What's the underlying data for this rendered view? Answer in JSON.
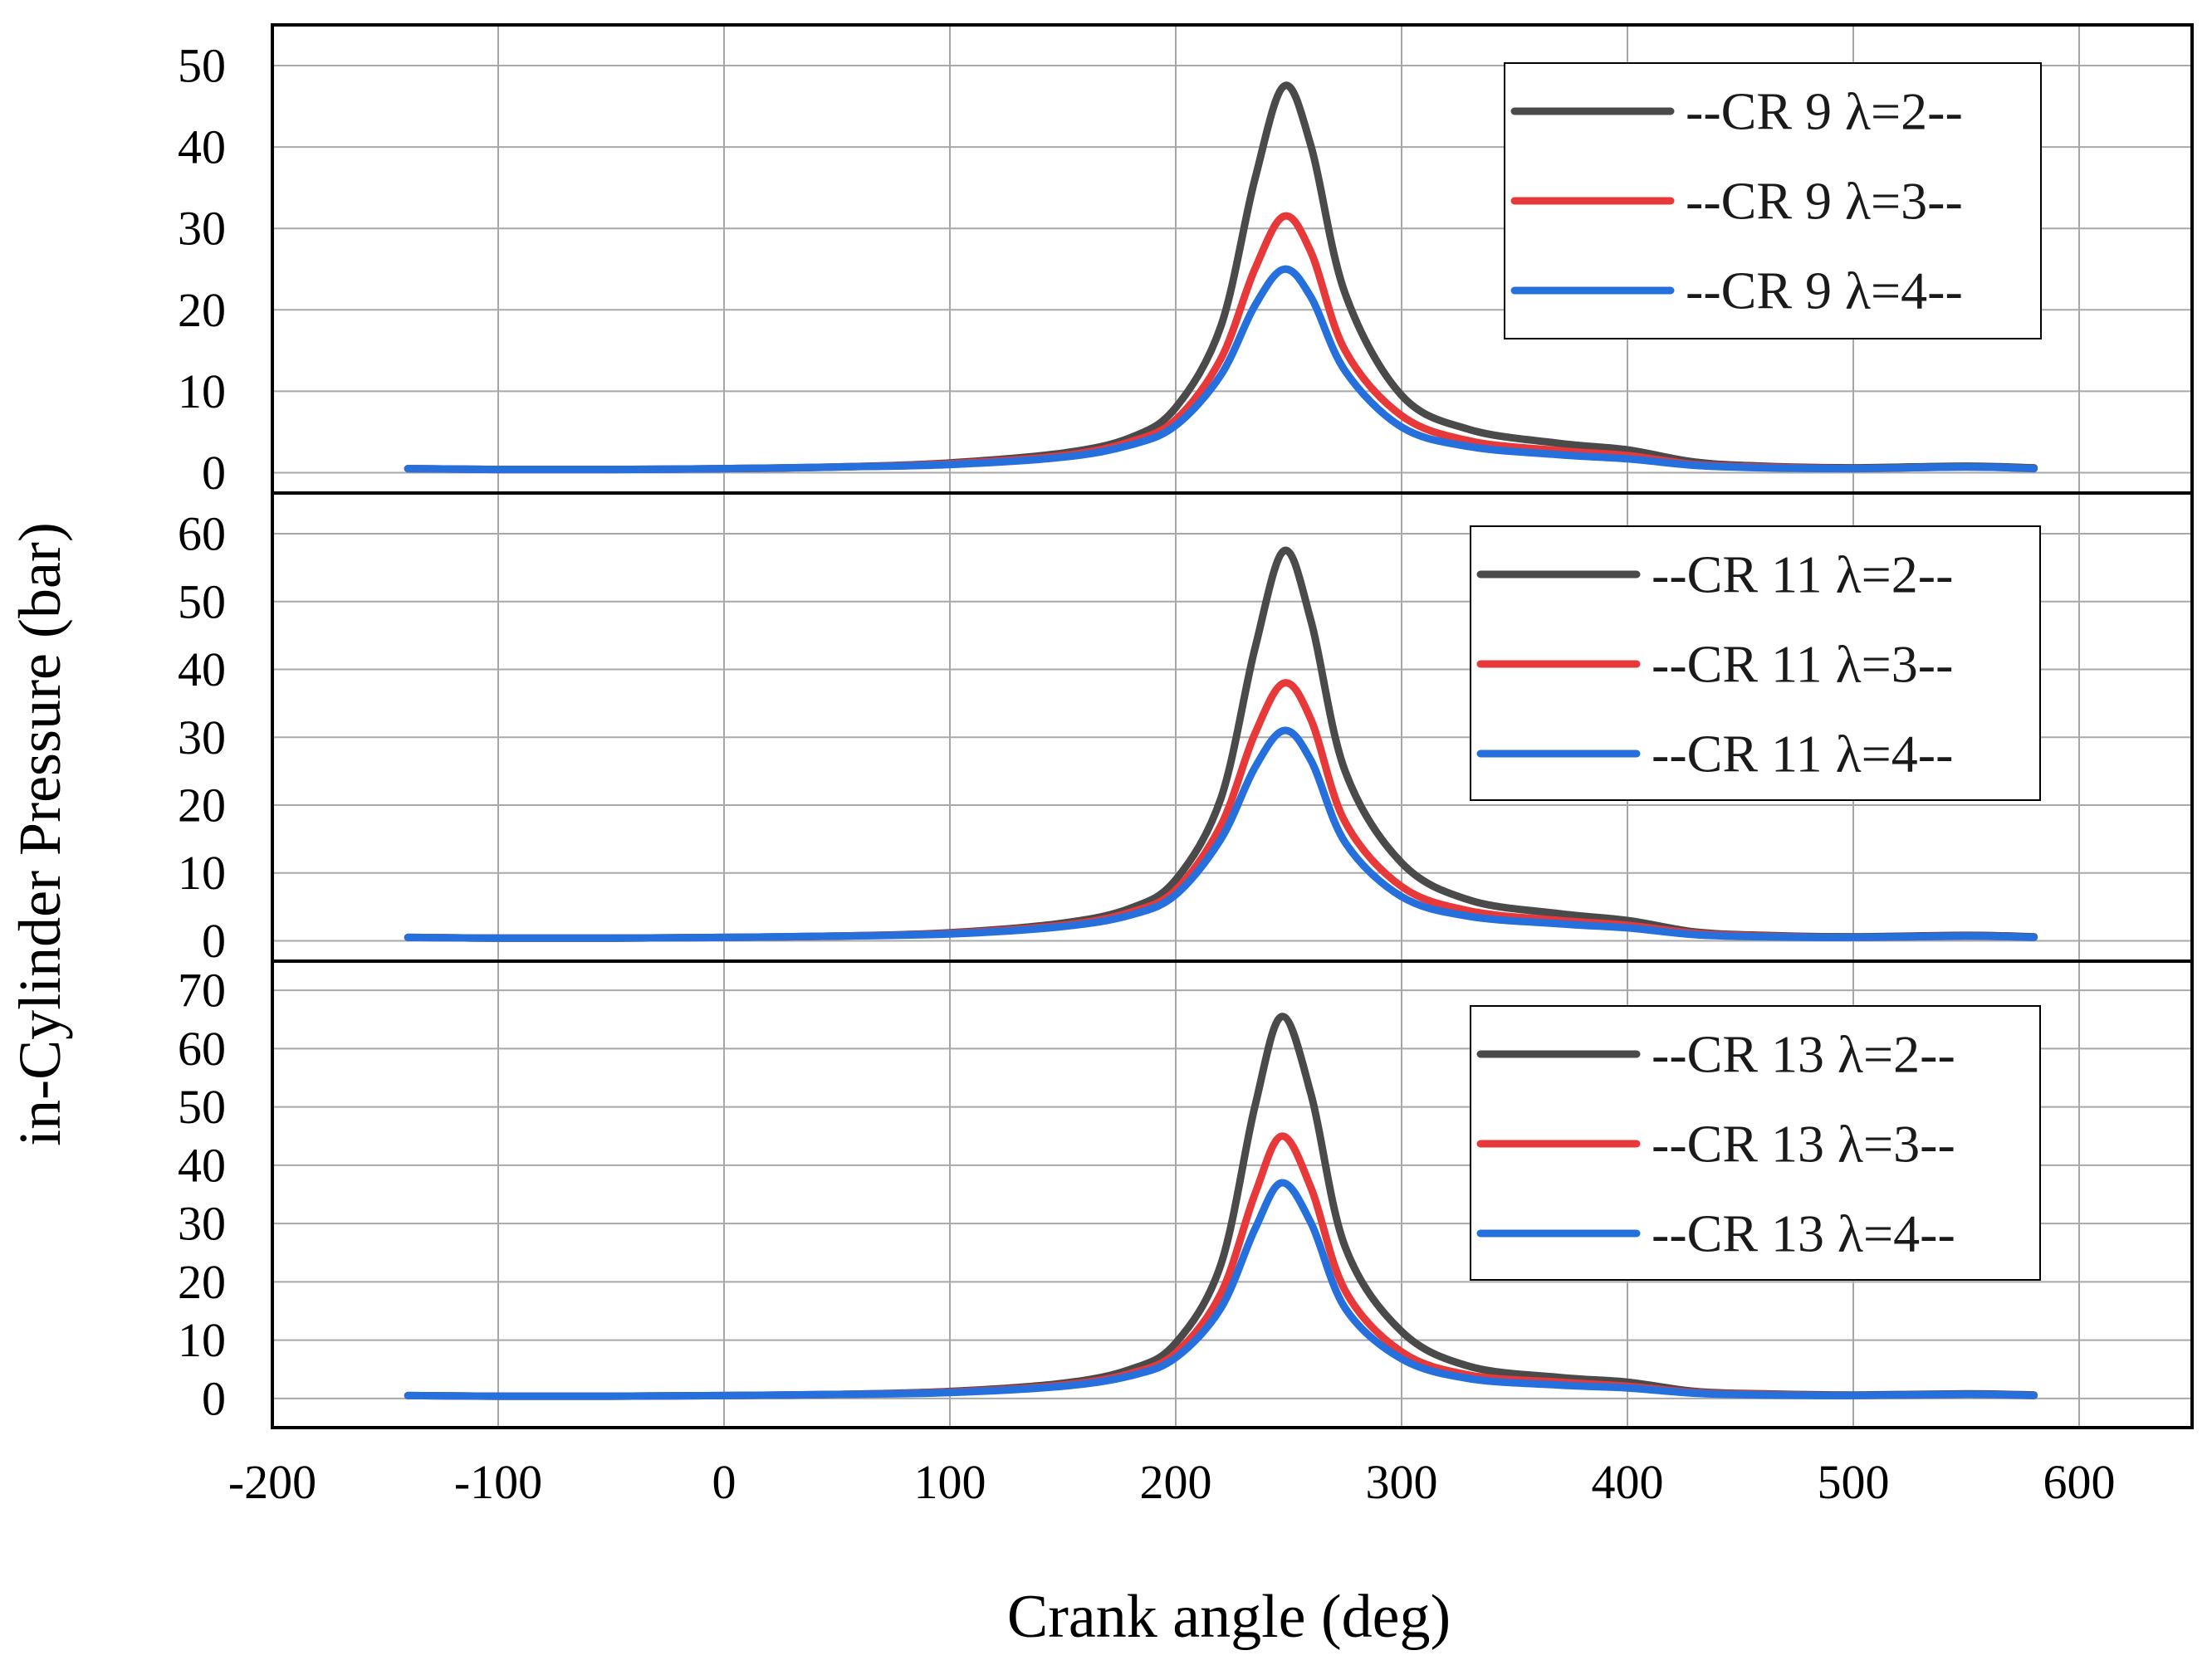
{
  "figure": {
    "ylabel": "in-Cylinder Pressure (bar)",
    "xlabel": "Crank angle (deg)"
  },
  "colors": {
    "lambda_2": "#4a4a4a",
    "lambda_3": "#e8393a",
    "lambda_4": "#2570dc",
    "grid": "#a8a8a8",
    "frame": "#000000"
  },
  "chart_data": [
    {
      "type": "line",
      "panel": "top",
      "title": "",
      "xlabel": "Crank angle (deg)",
      "ylabel": "in-Cylinder Pressure (bar)",
      "xlim": [
        -200,
        650
      ],
      "ylim": [
        -2.5,
        55
      ],
      "x_ticks": [
        -200,
        -100,
        0,
        100,
        200,
        300,
        400,
        500,
        600
      ],
      "y_ticks": [
        0,
        10,
        20,
        30,
        40,
        50
      ],
      "grid": true,
      "legend_position": "top-right",
      "x": [
        -140,
        -100,
        -50,
        0,
        50,
        100,
        150,
        180,
        200,
        220,
        235,
        248,
        260,
        275,
        300,
        330,
        370,
        400,
        430,
        460,
        500,
        550,
        580
      ],
      "series": [
        {
          "name": "--CR 9 λ=2--",
          "color_key": "lambda_2",
          "values": [
            0.5,
            0.4,
            0.4,
            0.5,
            0.7,
            1.2,
            2.4,
            4.3,
            8.0,
            18.0,
            36.0,
            47.5,
            40.0,
            22.0,
            9.5,
            5.3,
            3.6,
            2.8,
            1.3,
            0.8,
            0.6,
            0.8,
            0.6
          ]
        },
        {
          "name": "--CR 9 λ=3--",
          "color_key": "lambda_3",
          "values": [
            0.5,
            0.4,
            0.4,
            0.5,
            0.7,
            1.1,
            2.1,
            3.8,
            6.5,
            14.0,
            25.0,
            31.5,
            27.0,
            15.0,
            7.0,
            3.9,
            2.7,
            2.1,
            1.0,
            0.7,
            0.5,
            0.7,
            0.5
          ]
        },
        {
          "name": "--CR 9 λ=4--",
          "color_key": "lambda_4",
          "values": [
            0.5,
            0.4,
            0.4,
            0.5,
            0.7,
            1.0,
            1.9,
            3.4,
            5.8,
            12.0,
            20.5,
            25.0,
            21.5,
            12.5,
            5.6,
            3.2,
            2.2,
            1.7,
            0.9,
            0.6,
            0.5,
            0.7,
            0.5
          ]
        }
      ]
    },
    {
      "type": "line",
      "panel": "middle",
      "title": "",
      "xlabel": "Crank angle (deg)",
      "ylabel": "in-Cylinder Pressure (bar)",
      "xlim": [
        -200,
        650
      ],
      "ylim": [
        -3,
        66
      ],
      "x_ticks": [
        -200,
        -100,
        0,
        100,
        200,
        300,
        400,
        500,
        600
      ],
      "y_ticks": [
        0,
        10,
        20,
        30,
        40,
        50,
        60
      ],
      "grid": true,
      "legend_position": "top-right",
      "x": [
        -140,
        -100,
        -50,
        0,
        50,
        100,
        150,
        180,
        200,
        220,
        235,
        248,
        260,
        275,
        300,
        330,
        370,
        400,
        430,
        460,
        500,
        550,
        580
      ],
      "series": [
        {
          "name": "--CR 11 λ=2--",
          "color_key": "lambda_2",
          "values": [
            0.5,
            0.4,
            0.4,
            0.5,
            0.7,
            1.2,
            2.6,
            4.8,
            9.0,
            21.0,
            43.0,
            57.5,
            47.0,
            25.0,
            11.5,
            6.0,
            4.0,
            3.0,
            1.3,
            0.8,
            0.6,
            0.8,
            0.6
          ]
        },
        {
          "name": "--CR 11 λ=3--",
          "color_key": "lambda_3",
          "values": [
            0.5,
            0.4,
            0.4,
            0.5,
            0.7,
            1.1,
            2.3,
            4.2,
            7.5,
            17.0,
            30.5,
            38.0,
            32.5,
            17.5,
            8.0,
            4.4,
            3.0,
            2.3,
            1.1,
            0.7,
            0.5,
            0.7,
            0.5
          ]
        },
        {
          "name": "--CR 11 λ=4--",
          "color_key": "lambda_4",
          "values": [
            0.5,
            0.4,
            0.4,
            0.5,
            0.7,
            1.0,
            2.1,
            3.8,
            6.8,
            15.0,
            25.5,
            31.0,
            26.5,
            14.5,
            6.5,
            3.6,
            2.5,
            1.9,
            0.9,
            0.6,
            0.5,
            0.7,
            0.5
          ]
        }
      ]
    },
    {
      "type": "line",
      "panel": "bottom",
      "title": "",
      "xlabel": "Crank angle (deg)",
      "ylabel": "in-Cylinder Pressure (bar)",
      "xlim": [
        -200,
        650
      ],
      "ylim": [
        -5,
        75
      ],
      "x_ticks": [
        -200,
        -100,
        0,
        100,
        200,
        300,
        400,
        500,
        600
      ],
      "y_ticks": [
        0,
        10,
        20,
        30,
        40,
        50,
        60,
        70
      ],
      "grid": true,
      "legend_position": "top-right",
      "x": [
        -140,
        -100,
        -50,
        0,
        50,
        100,
        150,
        180,
        200,
        220,
        235,
        247,
        260,
        275,
        300,
        330,
        370,
        400,
        430,
        460,
        500,
        550,
        580
      ],
      "series": [
        {
          "name": "--CR 13 λ=2--",
          "color_key": "lambda_2",
          "values": [
            0.5,
            0.4,
            0.4,
            0.5,
            0.7,
            1.2,
            2.6,
            5.0,
            9.5,
            23.0,
            50.0,
            65.5,
            52.0,
            26.0,
            11.5,
            5.5,
            3.6,
            2.8,
            1.2,
            0.8,
            0.6,
            0.8,
            0.6
          ]
        },
        {
          "name": "--CR 13 λ=3--",
          "color_key": "lambda_3",
          "values": [
            0.5,
            0.4,
            0.4,
            0.5,
            0.7,
            1.1,
            2.3,
            4.3,
            7.8,
            18.0,
            35.0,
            45.0,
            36.0,
            18.5,
            8.0,
            4.0,
            2.8,
            2.1,
            1.0,
            0.7,
            0.5,
            0.7,
            0.5
          ]
        },
        {
          "name": "--CR 13 λ=4--",
          "color_key": "lambda_4",
          "values": [
            0.5,
            0.4,
            0.4,
            0.5,
            0.7,
            1.0,
            2.1,
            3.9,
            7.0,
            15.5,
            29.0,
            37.0,
            30.0,
            15.5,
            6.8,
            3.4,
            2.3,
            1.8,
            0.9,
            0.6,
            0.5,
            0.7,
            0.5
          ]
        }
      ]
    }
  ]
}
